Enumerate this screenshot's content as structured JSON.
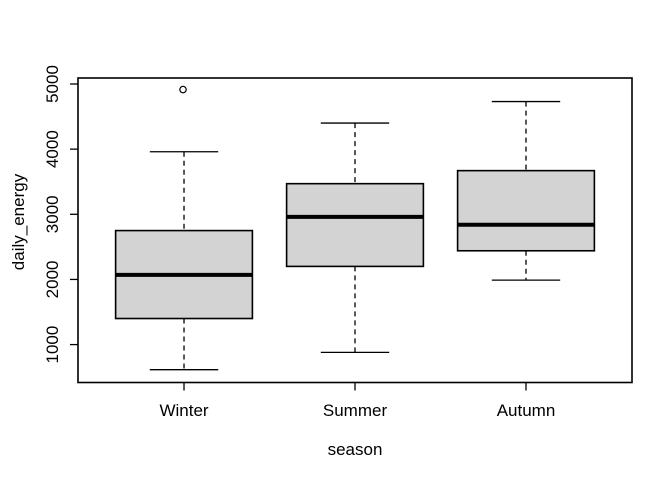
{
  "figure": {
    "background": "#ffffff",
    "foreground": "#000000"
  },
  "chart_data": {
    "type": "boxplot",
    "title": "",
    "xlabel": "season",
    "ylabel": "daily_energy",
    "categories": [
      "Winter",
      "Summer",
      "Autumn"
    ],
    "y_ticks": [
      "1000",
      "2000",
      "3000",
      "4000",
      "5000"
    ],
    "y_tick_values": [
      1000,
      2000,
      3000,
      4000,
      5000
    ],
    "ylim": [
      418,
      5092
    ],
    "grid": false,
    "legend": null,
    "boxes": [
      {
        "category": "Winter",
        "whisker_low": 615,
        "q1": 1400,
        "median": 2070,
        "q3": 2750,
        "whisker_high": 3960,
        "outliers": [
          4915
        ]
      },
      {
        "category": "Summer",
        "whisker_low": 880,
        "q1": 2200,
        "median": 2960,
        "q3": 3470,
        "whisker_high": 4400,
        "outliers": []
      },
      {
        "category": "Autumn",
        "whisker_low": 1990,
        "q1": 2440,
        "median": 2840,
        "q3": 3670,
        "whisker_high": 4730,
        "outliers": []
      }
    ],
    "box_fill": "#d3d3d3",
    "line_color": "#000000",
    "background": "#ffffff"
  }
}
